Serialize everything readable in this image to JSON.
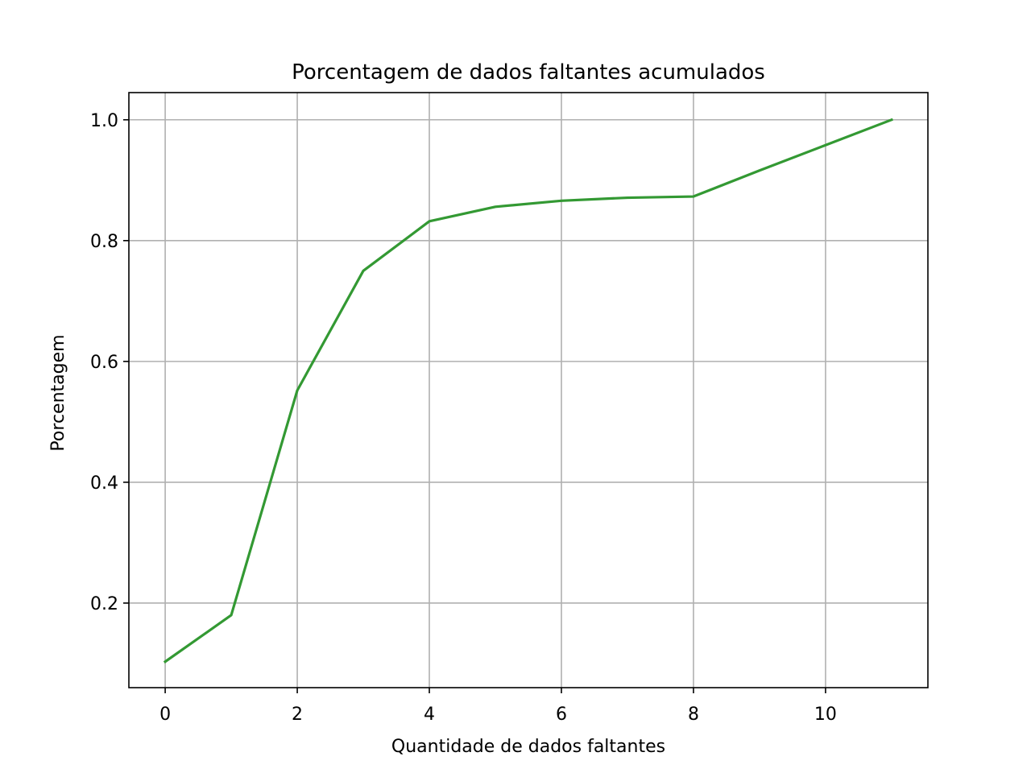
{
  "chart_data": {
    "type": "line",
    "title": "Porcentagem de dados faltantes acumulados",
    "xlabel": "Quantidade de dados faltantes",
    "ylabel": "Porcentagem",
    "xlim": [
      -0.55,
      11.55
    ],
    "ylim": [
      0.06,
      1.045
    ],
    "xticks": [
      0,
      2,
      4,
      6,
      8,
      10
    ],
    "yticks": [
      0.2,
      0.4,
      0.6,
      0.8,
      1.0
    ],
    "xtick_labels": [
      "0",
      "2",
      "4",
      "6",
      "8",
      "10"
    ],
    "ytick_labels": [
      "0.2",
      "0.4",
      "0.6",
      "0.8",
      "1.0"
    ],
    "grid": true,
    "series": [
      {
        "color": "#339933",
        "x": [
          0,
          1,
          2,
          3,
          4,
          5,
          6,
          7,
          8,
          9,
          10,
          11
        ],
        "y": [
          0.103,
          0.18,
          0.552,
          0.75,
          0.832,
          0.856,
          0.866,
          0.871,
          0.873,
          0.916,
          0.958,
          1.0
        ]
      }
    ]
  }
}
